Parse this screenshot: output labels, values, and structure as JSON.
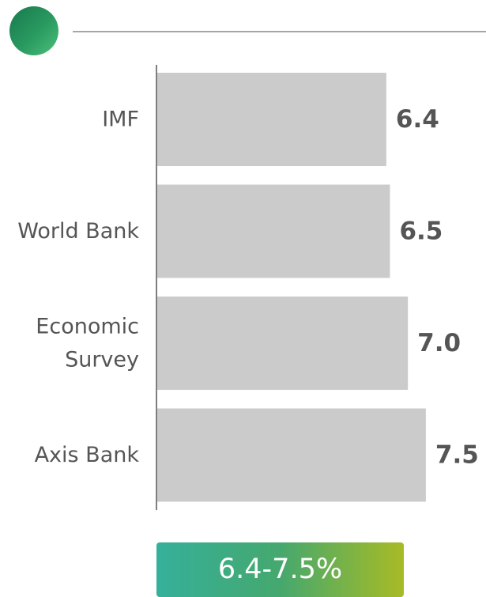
{
  "chart_data": {
    "type": "bar",
    "orientation": "horizontal",
    "categories": [
      [
        "IMF"
      ],
      [
        "World Bank"
      ],
      [
        "Economic",
        "Survey"
      ],
      [
        "Axis Bank"
      ]
    ],
    "values": [
      6.4,
      6.5,
      7.0,
      7.5
    ],
    "value_labels": [
      "6.4",
      "6.5",
      "7.0",
      "7.5"
    ],
    "xlim": [
      0,
      8.8
    ],
    "title": "",
    "xlabel": "",
    "ylabel": "",
    "grid": false,
    "colors": {
      "bar": "#cbcbcb",
      "axis": "#7f7f7f",
      "text": "#555555"
    }
  },
  "badge": {
    "text": "6.4-7.5%"
  }
}
